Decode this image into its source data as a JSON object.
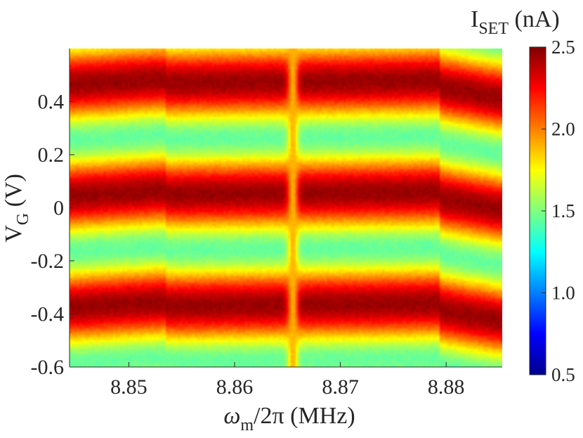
{
  "chart_data": {
    "type": "heatmap",
    "xlabel": {
      "base": "ω",
      "sub": "m",
      "rest": "/2π (MHz)"
    },
    "ylabel": {
      "base": "V",
      "sub": "G",
      "rest": " (V)"
    },
    "colorbar_label": {
      "base": "I",
      "sub": "SET",
      "rest": " (nA)"
    },
    "colormap": "jet",
    "xlim": [
      8.8444,
      8.8853
    ],
    "ylim": [
      -0.6,
      0.6
    ],
    "clim": [
      0.5,
      2.5
    ],
    "x_ticks": [
      8.85,
      8.86,
      8.87,
      8.88
    ],
    "x_tick_labels": [
      "8.85",
      "8.86",
      "8.87",
      "8.88"
    ],
    "y_ticks": [
      0.4,
      0.2,
      0,
      -0.2,
      -0.4,
      -0.6
    ],
    "y_tick_labels": [
      "0.4",
      "0.2",
      "0",
      "-0.2",
      "-0.4",
      "-0.6"
    ],
    "colorbar_ticks": [
      2.5,
      2.0,
      1.5,
      1.0,
      0.5
    ],
    "colorbar_tick_labels": [
      "2.5",
      "2.0",
      "1.5",
      "1.0",
      "0.5"
    ],
    "grid": false,
    "current_range_nA": [
      1.45,
      2.45
    ],
    "oscillation_peaks_V": [
      0.48,
      0.06,
      -0.34
    ],
    "oscillation_troughs_V": [
      0.3,
      -0.1,
      -0.52
    ],
    "resonance_frequency_MHz": 8.8655,
    "resonance_current_nA": 1.9,
    "segment_boundaries_MHz": [
      8.8534,
      8.8795
    ]
  }
}
